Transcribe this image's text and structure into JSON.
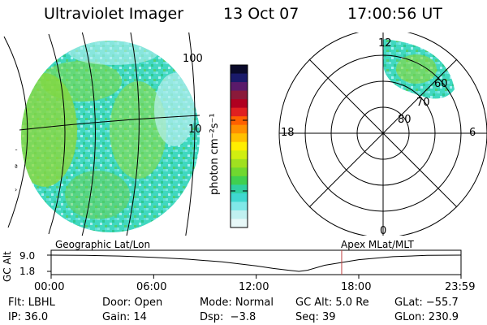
{
  "header": {
    "instrument": "Ultraviolet Imager",
    "date": "13 Oct 07",
    "time": "17:00:56 UT"
  },
  "colorbar": {
    "unit_label": "photon cm⁻²s⁻¹",
    "ticks": [
      "100",
      "10"
    ],
    "colors": [
      "#0a0a2a",
      "#1a1a6a",
      "#5a1a6a",
      "#8a1a3a",
      "#b00020",
      "#e02020",
      "#ff6000",
      "#ff9000",
      "#ffc000",
      "#ffee00",
      "#d0ee10",
      "#a0e020",
      "#70d830",
      "#40d050",
      "#30d0a0",
      "#40d8d0",
      "#80e8e8",
      "#c0f0f0",
      "#e8f8f8"
    ]
  },
  "polar_plot": {
    "mlt_labels": [
      "12",
      "18",
      "6",
      "0"
    ],
    "lat_labels": [
      "60",
      "70",
      "80"
    ]
  },
  "timeline": {
    "axis_label": "GC Alt",
    "y_ticks": [
      "9.0",
      "1.8"
    ],
    "left_title": "Geographic Lat/Lon",
    "right_title": "Apex MLat/MLT",
    "x_ticks": [
      "00:00",
      "06:00",
      "12:00",
      "18:00",
      "23:59"
    ],
    "marker_time": "17:00",
    "chart_data": {
      "type": "line",
      "x": [
        "00:00",
        "02:00",
        "04:00",
        "06:00",
        "08:00",
        "10:00",
        "12:00",
        "13:00",
        "14:00",
        "14:30",
        "15:00",
        "16:00",
        "18:00",
        "20:00",
        "22:00",
        "23:59"
      ],
      "values": [
        9.0,
        8.9,
        8.6,
        8.0,
        7.2,
        6.0,
        4.2,
        3.1,
        2.2,
        1.8,
        2.3,
        4.5,
        7.0,
        8.3,
        8.9,
        9.0
      ],
      "ylim": [
        1.8,
        9.0
      ]
    }
  },
  "info": {
    "filter": "Flt: LBHL",
    "ip": "IP: 36.0",
    "door": "Door: Open",
    "gain": "Gain: 14",
    "mode": "Mode: Normal",
    "dsp": "Dsp:  −3.8",
    "gc_alt": "GC Alt: 5.0 Re",
    "seq": "Seq: 39",
    "glat": "GLat: −55.7",
    "glon": "GLon: 230.9"
  }
}
